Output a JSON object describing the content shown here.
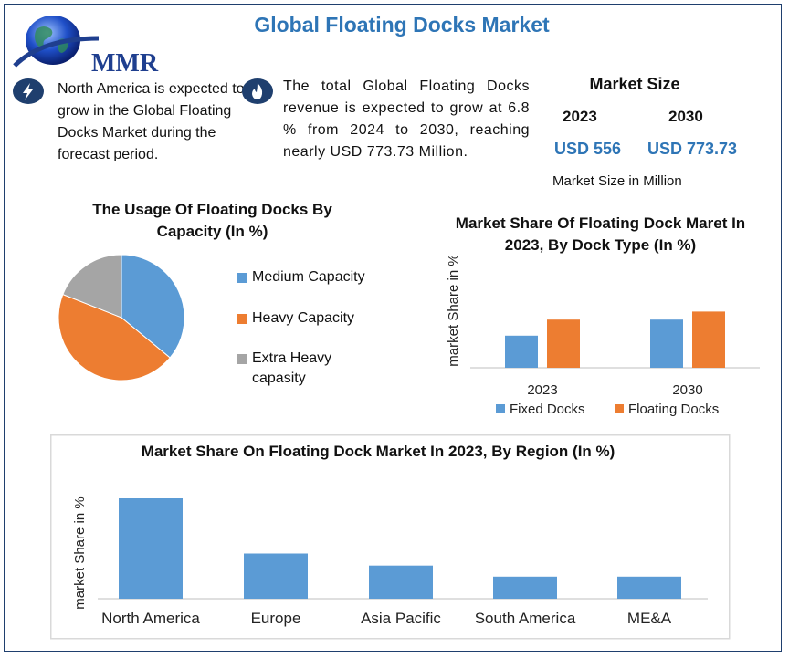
{
  "header": {
    "title": "Global Floating Docks Market",
    "logo_text": "MMR"
  },
  "info": {
    "north_america": "North America is expected to grow in the Global Floating Docks Market during the forecast period.",
    "revenue": "The total Global Floating Docks revenue is expected to grow at 6.8 % from 2024 to 2030, reaching nearly USD 773.73 Million."
  },
  "market_size": {
    "title": "Market Size",
    "year1": "2023",
    "year2": "2030",
    "value1": "USD 556",
    "value2": "USD 773.73",
    "note": "Market Size in Million"
  },
  "colors": {
    "blue": "#5b9bd5",
    "orange": "#ed7d31",
    "gray": "#a5a5a5",
    "accent": "#2e75b6",
    "navy": "#1f3f6e"
  },
  "chart_data": [
    {
      "type": "pie",
      "title": "The Usage Of Floating Docks By Capacity (In %)",
      "categories": [
        "Medium Capacity",
        "Heavy Capacity",
        "Extra Heavy capasity"
      ],
      "values": [
        36,
        45,
        19
      ]
    },
    {
      "type": "bar",
      "title": "Market Share Of Floating Dock Maret In 2023, By Dock Type (In %)",
      "ylabel": "market Share in %",
      "categories": [
        "2023",
        "2030"
      ],
      "series": [
        {
          "name": "Fixed Docks",
          "values": [
            40,
            60
          ]
        },
        {
          "name": "Floating Docks",
          "values": [
            60,
            70
          ]
        }
      ],
      "ylim": [
        0,
        100
      ],
      "legend": "bottom"
    },
    {
      "type": "bar",
      "title": "Market Share On Floating Dock Market In 2023, By Region (In %)",
      "ylabel": "market Share in %",
      "categories": [
        "North America",
        "Europe",
        "Asia Pacific",
        "South America",
        "ME&A"
      ],
      "values": [
        100,
        45,
        33,
        22,
        22
      ],
      "ylim": [
        0,
        100
      ]
    }
  ]
}
